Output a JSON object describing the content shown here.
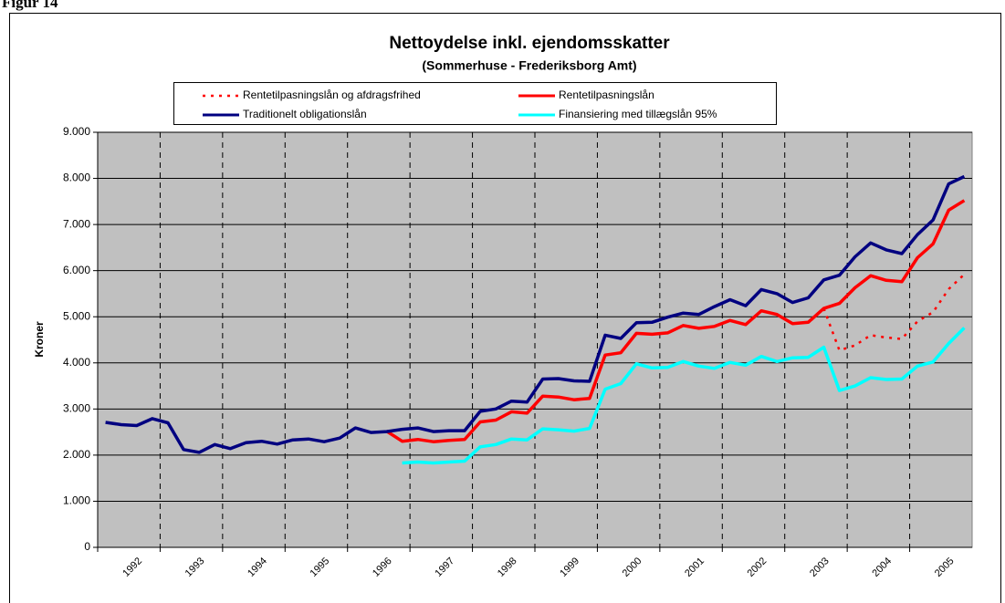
{
  "figure_label": "Figur 14",
  "chart_data": {
    "type": "line",
    "title": "Nettoydelse inkl. ejendomsskatter",
    "subtitle": "(Sommerhuse - Frederiksborg Amt)",
    "y_label": "Kroner",
    "categories": [
      null,
      "1992",
      null,
      null,
      null,
      "1993",
      null,
      null,
      null,
      "1994",
      null,
      null,
      null,
      "1995",
      null,
      null,
      null,
      "1996",
      null,
      null,
      null,
      "1997",
      null,
      null,
      null,
      "1998",
      null,
      null,
      null,
      "1999",
      null,
      null,
      null,
      "2000",
      null,
      null,
      null,
      "2001",
      null,
      null,
      null,
      "2002",
      null,
      null,
      null,
      "2003",
      null,
      null,
      null,
      "2004",
      null,
      null,
      null,
      "2005",
      null,
      null
    ],
    "ylim": [
      0,
      9000
    ],
    "yticks": [
      0,
      {
        "value": 1000,
        "label": "1.000"
      },
      {
        "value": 2000,
        "label": "2.000"
      },
      {
        "value": 3000,
        "label": "3.000"
      },
      {
        "value": 4000,
        "label": "4.000"
      },
      {
        "value": 5000,
        "label": "5.000"
      },
      {
        "value": 6000,
        "label": "6.000"
      },
      {
        "value": 7000,
        "label": "7.000"
      },
      {
        "value": 8000,
        "label": "8.000"
      },
      {
        "value": 9000,
        "label": "9.000"
      }
    ],
    "grid": true,
    "series": [
      {
        "name": "Rentetilpasningslån og afdragsfrihed",
        "color": "#ff0000",
        "dash": true,
        "values": [
          null,
          null,
          null,
          null,
          null,
          null,
          null,
          null,
          null,
          null,
          null,
          null,
          null,
          null,
          null,
          null,
          null,
          null,
          null,
          null,
          null,
          null,
          null,
          null,
          null,
          null,
          null,
          null,
          null,
          null,
          null,
          null,
          null,
          null,
          null,
          null,
          null,
          null,
          null,
          null,
          null,
          null,
          null,
          null,
          null,
          null,
          5180,
          4270,
          4380,
          4600,
          4550,
          4520,
          4900,
          5100,
          5600,
          5920
        ]
      },
      {
        "name": "Rentetilpasningslån",
        "color": "#ff0000",
        "dash": false,
        "values": [
          null,
          null,
          null,
          null,
          null,
          null,
          null,
          null,
          null,
          null,
          null,
          null,
          null,
          null,
          null,
          null,
          null,
          null,
          2520,
          2300,
          2340,
          2290,
          2320,
          2340,
          2720,
          2760,
          2940,
          2910,
          3280,
          3260,
          3200,
          3230,
          4170,
          4220,
          4640,
          4620,
          4650,
          4810,
          4750,
          4790,
          4920,
          4830,
          5130,
          5050,
          4850,
          4880,
          5180,
          5290,
          5630,
          5890,
          5790,
          5760,
          6280,
          6580,
          7310,
          7520
        ]
      },
      {
        "name": "Traditionelt obligationslån",
        "color": "#000080",
        "dash": false,
        "values": [
          2710,
          2660,
          2640,
          2790,
          2700,
          2120,
          2060,
          2230,
          2140,
          2270,
          2300,
          2240,
          2330,
          2350,
          2290,
          2370,
          2590,
          2490,
          2510,
          2560,
          2590,
          2510,
          2530,
          2530,
          2950,
          3000,
          3170,
          3150,
          3650,
          3660,
          3610,
          3600,
          4600,
          4530,
          4870,
          4880,
          4990,
          5080,
          5050,
          5220,
          5370,
          5240,
          5590,
          5500,
          5310,
          5410,
          5800,
          5900,
          6300,
          6600,
          6450,
          6370,
          6780,
          7100,
          7880,
          8040
        ]
      },
      {
        "name": "Finansiering med tillægslån 95%",
        "color": "#00ffff",
        "dash": false,
        "values": [
          null,
          null,
          null,
          null,
          null,
          null,
          null,
          null,
          null,
          null,
          null,
          null,
          null,
          null,
          null,
          null,
          null,
          null,
          null,
          1830,
          1850,
          1830,
          1850,
          1870,
          2180,
          2230,
          2350,
          2330,
          2570,
          2550,
          2520,
          2580,
          3430,
          3550,
          3980,
          3890,
          3900,
          4030,
          3930,
          3880,
          4010,
          3950,
          4140,
          4030,
          4110,
          4120,
          4340,
          3400,
          3500,
          3680,
          3640,
          3650,
          3930,
          4020,
          4420,
          4760
        ]
      }
    ]
  }
}
